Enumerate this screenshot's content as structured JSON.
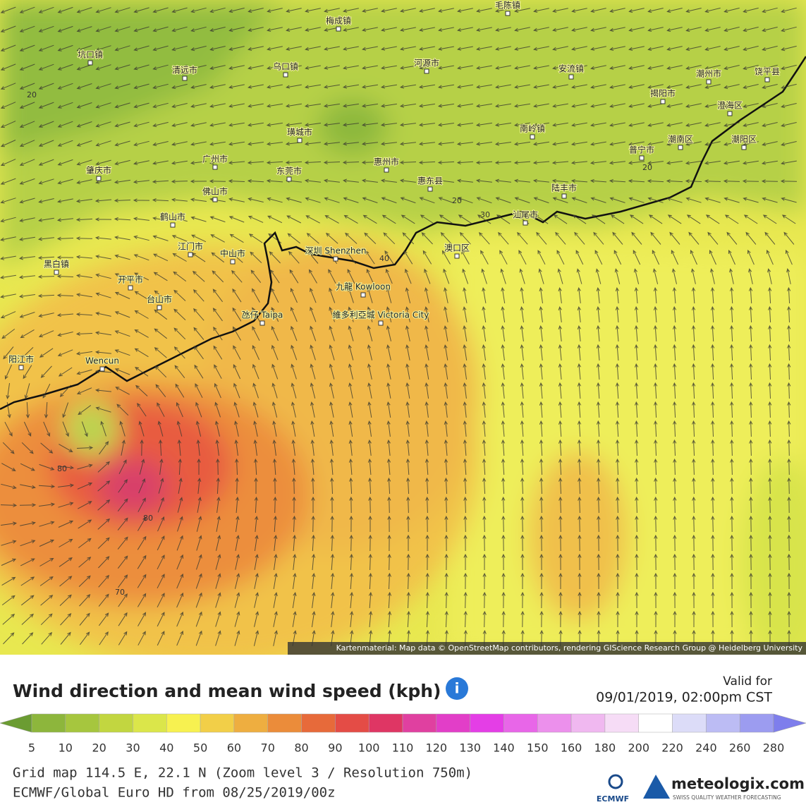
{
  "map": {
    "labels": [
      "毛陈镇",
      "梅成镇",
      "坑口镇",
      "清远市",
      "乌口镇",
      "河源市",
      "安流镇",
      "潮州市",
      "饶平县",
      "揭阳市",
      "澄海区",
      "璜城市",
      "南岭镇",
      "潮南区",
      "潮阳区",
      "普宁市",
      "广州市",
      "肇庆市",
      "东莞市",
      "惠州市",
      "惠东县",
      "陆丰市",
      "佛山市",
      "鹤山市",
      "汕尾市",
      "江门市",
      "中山市",
      "深圳 Shenzhen",
      "澳口区",
      "黑白镇",
      "开平市",
      "九龍 Kowloon",
      "台山市",
      "維多利亞城 Victoria City",
      "氹仔 Taipa",
      "阳江市",
      "Wencun"
    ],
    "contour_labels": [
      "20",
      "20",
      "20",
      "30",
      "40",
      "80",
      "80",
      "70"
    ],
    "attribution": "Kartenmaterial: Map data © OpenStreetMap contributors, rendering GIScience Research Group @ Heidelberg University"
  },
  "legend": {
    "title": "Wind direction and mean wind speed (kph)",
    "valid_label": "Valid for",
    "valid_time": "09/01/2019, 02:00pm CST",
    "ticks": [
      5,
      10,
      20,
      30,
      40,
      50,
      60,
      70,
      80,
      90,
      100,
      110,
      120,
      130,
      140,
      150,
      160,
      180,
      200,
      220,
      240,
      260,
      280
    ],
    "colors": [
      "#6b9c32",
      "#8db63c",
      "#a6c63e",
      "#c2d640",
      "#dbe64a",
      "#f7f150",
      "#f2cf48",
      "#eeae40",
      "#eb8c3a",
      "#e76a3a",
      "#e44c46",
      "#df3664",
      "#e040a0",
      "#e23ec8",
      "#e43ee6",
      "#e866e8",
      "#ec90ec",
      "#f0b8f0",
      "#f6dcf6",
      "#ffffff",
      "#dcdcf8",
      "#bcbcf4",
      "#9c9cf0",
      "#7e7eec"
    ]
  },
  "footer": {
    "line1": "Grid map 114.5 E, 22.1 N (Zoom level 3 / Resolution 750m)",
    "line2": "ECMWF/Global Euro HD from 08/25/2019/00z",
    "ecmwf": "ECMWF",
    "brand": "meteologix.com",
    "tagline": "SWISS QUALITY WEATHER FORECASTING"
  }
}
